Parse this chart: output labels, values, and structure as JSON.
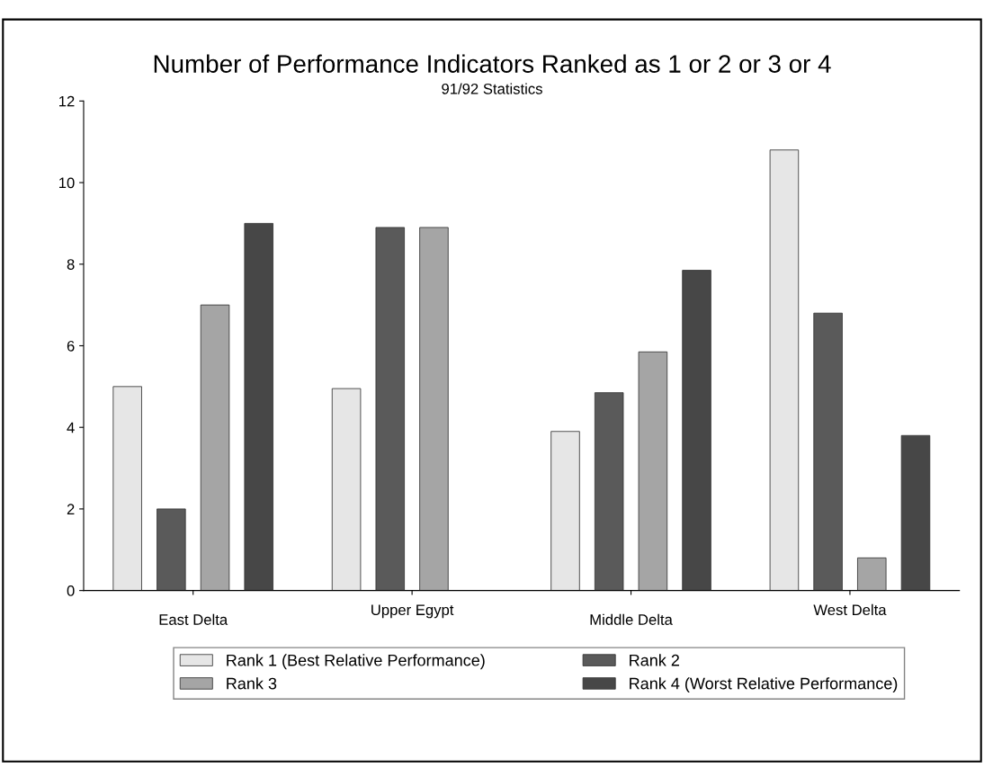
{
  "chart_data": {
    "type": "bar",
    "title": "Number of Performance Indicators Ranked as 1 or 2 or 3 or 4",
    "subtitle": "91/92 Statistics",
    "categories": [
      "East Delta",
      "Upper Egypt",
      "Middle Delta",
      "West Delta"
    ],
    "series": [
      {
        "name": "Rank 1 (Best Relative Performance)",
        "color": "#e6e6e6",
        "values": [
          5,
          4.95,
          3.9,
          10.8
        ]
      },
      {
        "name": "Rank 2",
        "color": "#5a5a5a",
        "values": [
          2,
          8.9,
          4.85,
          6.8
        ]
      },
      {
        "name": "Rank 3",
        "color": "#a5a5a5",
        "values": [
          7,
          8.9,
          5.85,
          0.8
        ]
      },
      {
        "name": "Rank 4 (Worst Relative Performance)",
        "color": "#474747",
        "values": [
          9,
          null,
          7.85,
          3.8
        ]
      }
    ],
    "ylim": [
      0,
      12
    ],
    "yticks": [
      0,
      2,
      4,
      6,
      8,
      10,
      12
    ],
    "grid": false,
    "legend": "bottom"
  }
}
